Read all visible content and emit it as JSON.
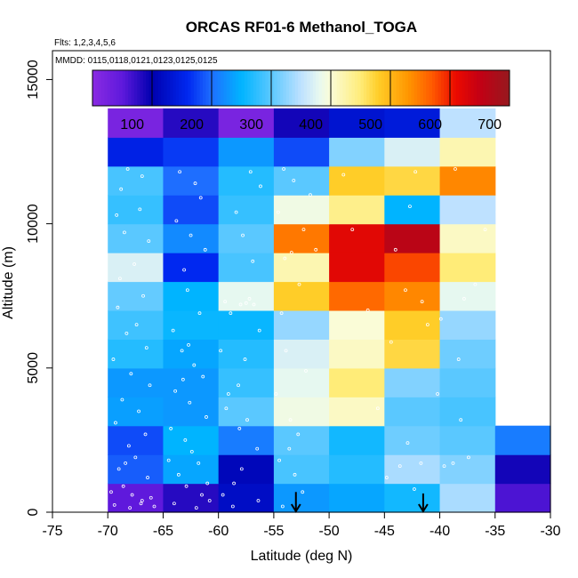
{
  "chart_data": {
    "type": "heatmap",
    "title": "ORCAS RF01-6 Methanol_TOGA",
    "flights_text": "Flts: 1,2,3,4,5,6",
    "dates_text": "MMDD: 0115,0118,0121,0123,0125,0125",
    "xlabel": "Latitude (deg N)",
    "ylabel": "Altitude (m)",
    "xlim": [
      -75,
      -30
    ],
    "ylim": [
      0,
      16000
    ],
    "x_ticks": [
      -75,
      -70,
      -65,
      -60,
      -55,
      -50,
      -45,
      -40,
      -35,
      -30
    ],
    "x_tick_labels": [
      "-75",
      "-70",
      "-65",
      "-60",
      "-55",
      "-50",
      "-45",
      "-40",
      "-35",
      "-30"
    ],
    "y_ticks": [
      0,
      5000,
      10000,
      15000
    ],
    "y_tick_labels": [
      "0",
      "5000",
      "10000",
      "15000"
    ],
    "colorbar": {
      "min": 0,
      "max": 700,
      "ticks": [
        100,
        200,
        300,
        400,
        500,
        600,
        700
      ],
      "tick_labels": [
        "100",
        "200",
        "300",
        "400",
        "500",
        "600",
        "700"
      ]
    },
    "lat_bin_edges": [
      -70,
      -65,
      -60,
      -55,
      -50,
      -45,
      -40,
      -35,
      -30
    ],
    "alt_bin_size": 1000,
    "grid_values": [
      [
        50,
        80,
        120,
        230,
        240,
        260,
        340,
        60
      ],
      [
        190,
        240,
        110,
        290,
        270,
        340,
        320,
        90
      ],
      [
        180,
        250,
        210,
        300,
        260,
        310,
        300,
        210
      ],
      [
        235,
        230,
        300,
        390,
        410,
        300,
        290,
        null
      ],
      [
        230,
        230,
        280,
        380,
        450,
        320,
        300,
        null
      ],
      [
        270,
        240,
        270,
        370,
        410,
        470,
        310,
        null
      ],
      [
        285,
        255,
        255,
        330,
        400,
        480,
        330,
        null
      ],
      [
        305,
        250,
        380,
        480,
        560,
        540,
        380,
        null
      ],
      [
        370,
        160,
        290,
        420,
        620,
        580,
        450,
        null
      ],
      [
        300,
        220,
        300,
        550,
        620,
        660,
        410,
        null
      ],
      [
        280,
        180,
        280,
        390,
        440,
        250,
        350,
        null
      ],
      [
        290,
        200,
        270,
        300,
        480,
        470,
        540,
        null
      ],
      [
        150,
        170,
        230,
        180,
        320,
        370,
        420,
        null
      ],
      [
        20,
        80,
        20,
        90,
        130,
        140,
        350,
        null
      ]
    ],
    "sample_points": [
      [
        -68.2,
        11900
      ],
      [
        -66.9,
        11650
      ],
      [
        -68.8,
        11200
      ],
      [
        -67.1,
        10500
      ],
      [
        -69.2,
        10300
      ],
      [
        -68.5,
        9700
      ],
      [
        -66.3,
        9400
      ],
      [
        -67.6,
        8600
      ],
      [
        -68.9,
        8100
      ],
      [
        -66.8,
        7500
      ],
      [
        -69.1,
        7100
      ],
      [
        -67.4,
        6500
      ],
      [
        -68.3,
        6200
      ],
      [
        -66.5,
        5700
      ],
      [
        -69.5,
        5300
      ],
      [
        -67.9,
        4800
      ],
      [
        -66.2,
        4400
      ],
      [
        -68.7,
        3900
      ],
      [
        -67.2,
        3500
      ],
      [
        -69.3,
        3100
      ],
      [
        -66.6,
        2700
      ],
      [
        -68.1,
        2300
      ],
      [
        -67.5,
        1900
      ],
      [
        -69.0,
        1500
      ],
      [
        -66.4,
        1200
      ],
      [
        -68.6,
        900
      ],
      [
        -67.8,
        600
      ],
      [
        -66.9,
        400
      ],
      [
        -69.4,
        250
      ],
      [
        -68.0,
        150
      ],
      [
        -67.0,
        300
      ],
      [
        -66.1,
        500
      ],
      [
        -65.8,
        200
      ],
      [
        -69.7,
        700
      ],
      [
        -68.4,
        1700
      ],
      [
        -63.5,
        11800
      ],
      [
        -62.1,
        11400
      ],
      [
        -61.6,
        10900
      ],
      [
        -63.8,
        10100
      ],
      [
        -62.5,
        9600
      ],
      [
        -61.2,
        9100
      ],
      [
        -63.1,
        8400
      ],
      [
        -62.8,
        7700
      ],
      [
        -61.7,
        6900
      ],
      [
        -64.1,
        6300
      ],
      [
        -63.3,
        5600
      ],
      [
        -62.2,
        5100
      ],
      [
        -61.4,
        4700
      ],
      [
        -63.9,
        4200
      ],
      [
        -62.6,
        3800
      ],
      [
        -61.1,
        3300
      ],
      [
        -64.3,
        2900
      ],
      [
        -63.0,
        2500
      ],
      [
        -62.4,
        2100
      ],
      [
        -61.8,
        1700
      ],
      [
        -63.6,
        1300
      ],
      [
        -62.9,
        900
      ],
      [
        -61.5,
        600
      ],
      [
        -64.0,
        300
      ],
      [
        -62.0,
        150
      ],
      [
        -60.8,
        400
      ],
      [
        -61.0,
        1000
      ],
      [
        -64.5,
        1800
      ],
      [
        -63.2,
        4600
      ],
      [
        -62.7,
        5800
      ],
      [
        -59.1,
        4100
      ],
      [
        -58.2,
        4400
      ],
      [
        -57.6,
        5300
      ],
      [
        -56.3,
        6300
      ],
      [
        -58.9,
        6900
      ],
      [
        -57.2,
        7400
      ],
      [
        -56.8,
        7200
      ],
      [
        -59.4,
        7300
      ],
      [
        -58.6,
        1000
      ],
      [
        -57.9,
        1500
      ],
      [
        -56.5,
        2200
      ],
      [
        -58.1,
        2900
      ],
      [
        -59.3,
        3600
      ],
      [
        -56.9,
        8700
      ],
      [
        -57.8,
        9600
      ],
      [
        -58.4,
        10400
      ],
      [
        -56.2,
        11300
      ],
      [
        -57.1,
        11800
      ],
      [
        -59.6,
        600
      ],
      [
        -58.7,
        200
      ],
      [
        -56.4,
        400
      ],
      [
        -57.4,
        3200
      ],
      [
        -59.8,
        5600
      ],
      [
        -58.0,
        7200
      ],
      [
        -57.5,
        7250
      ],
      [
        -54.1,
        11900
      ],
      [
        -53.2,
        11500
      ],
      [
        -51.7,
        11000
      ],
      [
        -54.6,
        10400
      ],
      [
        -52.3,
        9800
      ],
      [
        -51.2,
        9100
      ],
      [
        -53.4,
        9000
      ],
      [
        -54.0,
        8800
      ],
      [
        -52.7,
        7900
      ],
      [
        -54.3,
        6900
      ],
      [
        -53.9,
        5600
      ],
      [
        -52.1,
        4900
      ],
      [
        -54.8,
        4100
      ],
      [
        -53.5,
        3200
      ],
      [
        -52.8,
        2700
      ],
      [
        -54.5,
        1800
      ],
      [
        -53.1,
        1300
      ],
      [
        -52.4,
        700
      ],
      [
        -54.2,
        200
      ],
      [
        -53.6,
        2200
      ],
      [
        -48.7,
        11700
      ],
      [
        -42.2,
        11800
      ],
      [
        -38.6,
        11900
      ],
      [
        -34.3,
        11650
      ],
      [
        -47.9,
        9800
      ],
      [
        -43.1,
        7700
      ],
      [
        -41.6,
        7300
      ],
      [
        -37.8,
        7400
      ],
      [
        -44.4,
        5900
      ],
      [
        -41.1,
        6500
      ],
      [
        -38.3,
        5300
      ],
      [
        -42.9,
        2400
      ],
      [
        -39.6,
        1600
      ],
      [
        -38.8,
        1700
      ],
      [
        -43.6,
        1600
      ],
      [
        -41.7,
        1700
      ],
      [
        -37.4,
        1900
      ],
      [
        -44.8,
        1200
      ],
      [
        -42.3,
        800
      ],
      [
        -46.5,
        7000
      ],
      [
        -36.8,
        7900
      ],
      [
        -35.9,
        9800
      ],
      [
        -34.8,
        10400
      ],
      [
        -33.9,
        8700
      ],
      [
        -40.2,
        4100
      ],
      [
        -45.6,
        3600
      ],
      [
        -38.1,
        3200
      ],
      [
        -44.0,
        9100
      ],
      [
        -42.7,
        10600
      ],
      [
        -39.9,
        6700
      ]
    ],
    "arrow_markers": [
      {
        "lat": -53.0,
        "alt": 700
      },
      {
        "lat": -41.5,
        "alt": 650
      }
    ]
  }
}
